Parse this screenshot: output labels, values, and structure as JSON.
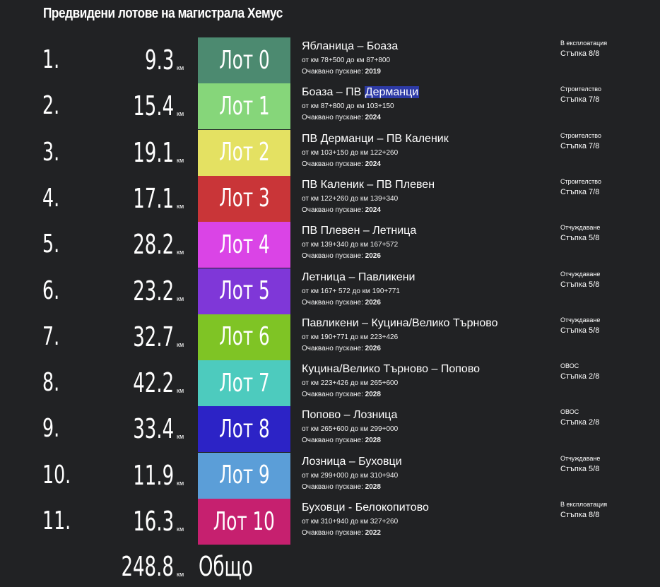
{
  "title": "Предвидени лотове на магистрала Хемус",
  "km_unit": "км",
  "expected_label": "Очаквано пускане:",
  "lots": [
    {
      "index": "1.",
      "length": "9.3",
      "lot": "Лот 0",
      "color": "#4c8a70",
      "route": "Ябланица – Боаза",
      "route_extra": "",
      "range": "от км 78+500 до км 87+800",
      "year": "2019",
      "status": "В експлоатация",
      "step": "Стъпка 8/8",
      "text_color": "#ffffff"
    },
    {
      "index": "2.",
      "length": "15.4",
      "lot": "Лот 1",
      "color": "#86d67a",
      "route": "Боаза – ПВ ",
      "route_extra": "Дерманци",
      "range": "от км 87+800 до км 103+150",
      "year": "2024",
      "status": "Строителство",
      "step": "Стъпка 7/8",
      "text_color": "#ffffff"
    },
    {
      "index": "3.",
      "length": "19.1",
      "lot": "Лот 2",
      "color": "#e4e162",
      "route": "ПВ Дерманци – ПВ Каленик",
      "route_extra": "",
      "range": "от км 103+150 до км 122+260",
      "year": "2024",
      "status": "Строителство",
      "step": "Стъпка 7/8",
      "text_color": "#ffffff"
    },
    {
      "index": "4.",
      "length": "17.1",
      "lot": "Лот 3",
      "color": "#c93538",
      "route": "ПВ Каленик – ПВ Плевен",
      "route_extra": "",
      "range": "от км 122+260 до км 139+340",
      "year": "2024",
      "status": "Строителство",
      "step": "Стъпка 7/8",
      "text_color": "#ffffff"
    },
    {
      "index": "5.",
      "length": "28.2",
      "lot": "Лот 4",
      "color": "#da44e6",
      "route": "ПВ Плевен – Летница",
      "route_extra": "",
      "range": "от км 139+340 до км 167+572",
      "year": "2026",
      "status": "Отчуждаване",
      "step": "Стъпка 5/8",
      "text_color": "#ffffff"
    },
    {
      "index": "6.",
      "length": "23.2",
      "lot": "Лот 5",
      "color": "#7f37d8",
      "route": "Летница – Павликени",
      "route_extra": "",
      "range": "от км 167+ 572 до км 190+771",
      "year": "2026",
      "status": "Отчуждаване",
      "step": "Стъпка 5/8",
      "text_color": "#ffffff"
    },
    {
      "index": "7.",
      "length": "32.7",
      "lot": "Лот 6",
      "color": "#7fc425",
      "route": "Павликени – Куцина/Велико Търново",
      "route_extra": "",
      "range": "от км 190+771 до км 223+426",
      "year": "2026",
      "status": "Отчуждаване",
      "step": "Стъпка 5/8",
      "text_color": "#ffffff"
    },
    {
      "index": "8.",
      "length": "42.2",
      "lot": "Лот 7",
      "color": "#4dcbbe",
      "route": "Куцина/Велико Търново – Попово",
      "route_extra": "",
      "range": "от км 223+426 до км 265+600",
      "year": "2028",
      "status": "ОВОС",
      "step": "Стъпка 2/8",
      "text_color": "#ffffff"
    },
    {
      "index": "9.",
      "length": "33.4",
      "lot": "Лот 8",
      "color": "#2c23c6",
      "route": "Попово – Лозница",
      "route_extra": "",
      "range": "от км 265+600 до км 299+000",
      "year": "2028",
      "status": "ОВОС",
      "step": "Стъпка 2/8",
      "text_color": "#ffffff"
    },
    {
      "index": "10.",
      "length": "11.9",
      "lot": "Лот 9",
      "color": "#5b9ed8",
      "route": "Лозница – Буховци",
      "route_extra": "",
      "range": "от км 299+000 до км 310+940",
      "year": "2028",
      "status": "Отчуждаване",
      "step": "Стъпка 5/8",
      "text_color": "#ffffff"
    },
    {
      "index": "11.",
      "length": "16.3",
      "lot": "Лот 10",
      "color": "#c6206f",
      "route": "Буховци - Белокопитово",
      "route_extra": "",
      "range": "от км 310+940 до км 327+260",
      "year": "2022",
      "status": "В експлоатация",
      "step": "Стъпка 8/8",
      "text_color": "#ffffff"
    }
  ],
  "total": {
    "length": "248.8",
    "label": "Общо"
  }
}
